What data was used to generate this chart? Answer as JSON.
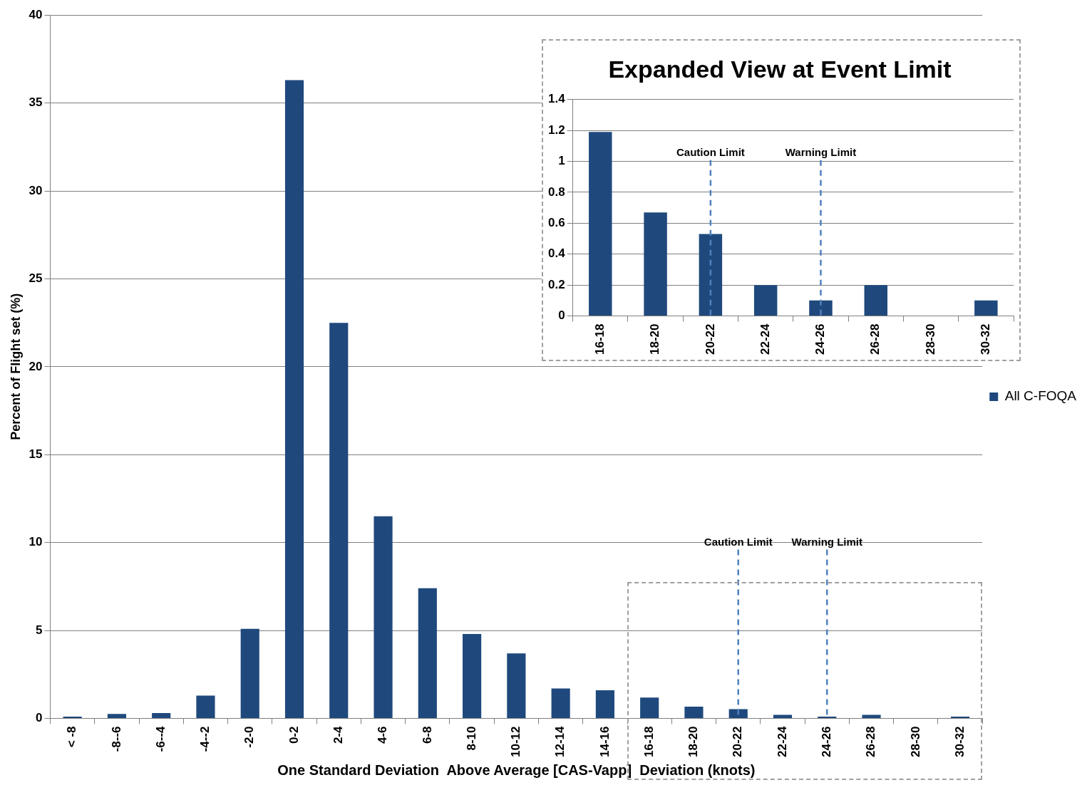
{
  "chart_data": [
    {
      "type": "bar",
      "xlabel": "One Standard Deviation  Above Average [CAS-Vapp]  Deviation (knots)",
      "ylabel": "Percent of Flight set (%)",
      "categories": [
        "< -8",
        "-8--6",
        "-6--4",
        "-4--2",
        "-2-0",
        "0-2",
        "2-4",
        "4-6",
        "6-8",
        "8-10",
        "10-12",
        "12-14",
        "14-16",
        "16-18",
        "18-20",
        "20-22",
        "22-24",
        "24-26",
        "26-28",
        "28-30",
        "30-32"
      ],
      "series": [
        {
          "name": "All C-FOQA",
          "color": "#1f497d",
          "values": [
            0.1,
            0.25,
            0.3,
            1.3,
            5.1,
            36.3,
            22.5,
            11.5,
            7.4,
            4.8,
            3.7,
            1.7,
            1.6,
            1.19,
            0.67,
            0.53,
            0.2,
            0.1,
            0.2,
            0,
            0.1
          ]
        }
      ],
      "ylim": [
        0,
        40
      ],
      "yticks": [
        0,
        5,
        10,
        15,
        20,
        25,
        30,
        35,
        40
      ],
      "grid": "y",
      "legend": "right",
      "ref_lines": [
        {
          "axis": "x",
          "value": "20-22",
          "label": "Caution Limit",
          "color": "#4f81bd",
          "line_style": "dashed"
        },
        {
          "axis": "x",
          "value": "24-26",
          "label": "Warning Limit",
          "color": "#4f81bd",
          "line_style": "dashed"
        }
      ]
    },
    {
      "type": "bar",
      "title": "Expanded View at Event Limit",
      "categories": [
        "16-18",
        "18-20",
        "20-22",
        "22-24",
        "24-26",
        "26-28",
        "28-30",
        "30-32"
      ],
      "series": [
        {
          "color": "#1f497d",
          "values": [
            1.19,
            0.67,
            0.53,
            0.2,
            0.1,
            0.2,
            0,
            0.1
          ]
        }
      ],
      "ylim": [
        0,
        1.4
      ],
      "yticks": [
        0,
        0.2,
        0.4,
        0.6,
        0.8,
        1,
        1.2,
        1.4
      ],
      "grid": "y",
      "ref_lines": [
        {
          "axis": "x",
          "value": "20-22",
          "label": "Caution Limit",
          "color": "#4f81bd",
          "line_style": "dashed"
        },
        {
          "axis": "x",
          "value": "24-26",
          "label": "Warning Limit",
          "color": "#4f81bd",
          "line_style": "dashed"
        }
      ]
    }
  ]
}
